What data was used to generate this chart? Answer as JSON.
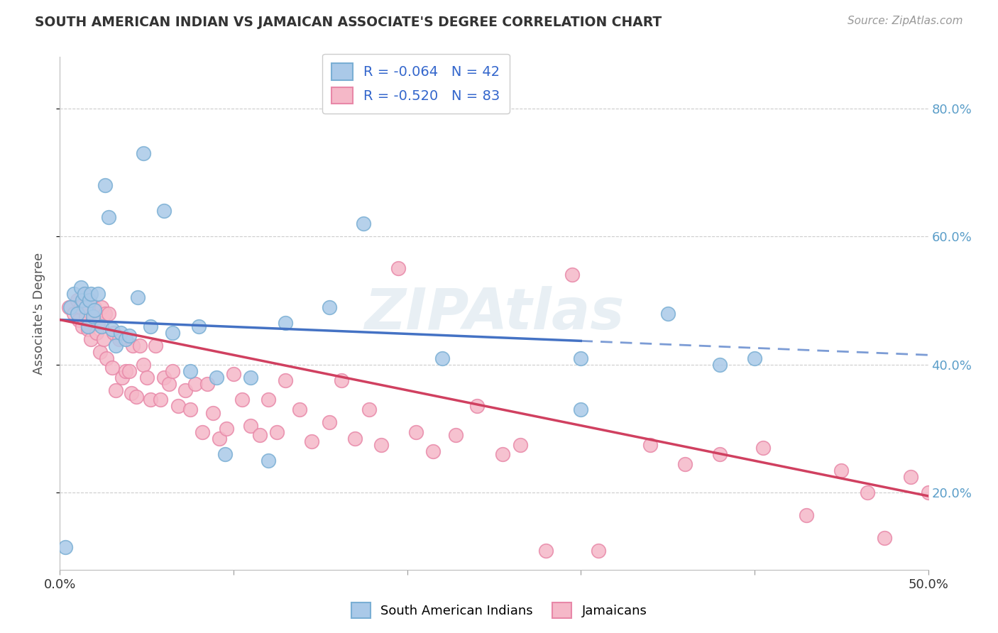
{
  "title": "SOUTH AMERICAN INDIAN VS JAMAICAN ASSOCIATE'S DEGREE CORRELATION CHART",
  "source": "Source: ZipAtlas.com",
  "ylabel": "Associate's Degree",
  "xlim": [
    0.0,
    0.5
  ],
  "ylim": [
    0.08,
    0.88
  ],
  "yticks": [
    0.2,
    0.4,
    0.6,
    0.8
  ],
  "ytick_labels": [
    "20.0%",
    "40.0%",
    "60.0%",
    "80.0%"
  ],
  "xticks": [
    0.0,
    0.1,
    0.2,
    0.3,
    0.4,
    0.5
  ],
  "xtick_labels": [
    "0.0%",
    "",
    "",
    "",
    "",
    "50.0%"
  ],
  "blue_R": "-0.064",
  "blue_N": "42",
  "pink_R": "-0.520",
  "pink_N": "83",
  "blue_color": "#aac9e8",
  "pink_color": "#f5b8c8",
  "blue_edge": "#7aafd4",
  "pink_edge": "#e888a8",
  "trend_blue": "#4472c4",
  "trend_pink": "#d04060",
  "watermark": "ZIPAtlas",
  "blue_points_x": [
    0.003,
    0.006,
    0.008,
    0.01,
    0.012,
    0.013,
    0.014,
    0.015,
    0.016,
    0.017,
    0.018,
    0.019,
    0.02,
    0.022,
    0.024,
    0.026,
    0.028,
    0.03,
    0.032,
    0.035,
    0.038,
    0.04,
    0.045,
    0.048,
    0.052,
    0.06,
    0.065,
    0.075,
    0.08,
    0.09,
    0.095,
    0.11,
    0.12,
    0.13,
    0.155,
    0.175,
    0.22,
    0.3,
    0.38,
    0.3,
    0.4,
    0.35
  ],
  "blue_points_y": [
    0.115,
    0.49,
    0.51,
    0.48,
    0.52,
    0.5,
    0.51,
    0.49,
    0.46,
    0.5,
    0.51,
    0.475,
    0.485,
    0.51,
    0.46,
    0.68,
    0.63,
    0.455,
    0.43,
    0.45,
    0.44,
    0.445,
    0.505,
    0.73,
    0.46,
    0.64,
    0.45,
    0.39,
    0.46,
    0.38,
    0.26,
    0.38,
    0.25,
    0.465,
    0.49,
    0.62,
    0.41,
    0.41,
    0.4,
    0.33,
    0.41,
    0.48
  ],
  "pink_points_x": [
    0.005,
    0.008,
    0.01,
    0.011,
    0.012,
    0.013,
    0.014,
    0.015,
    0.016,
    0.017,
    0.018,
    0.019,
    0.02,
    0.021,
    0.022,
    0.023,
    0.024,
    0.025,
    0.026,
    0.027,
    0.028,
    0.03,
    0.031,
    0.032,
    0.034,
    0.036,
    0.038,
    0.04,
    0.041,
    0.042,
    0.044,
    0.046,
    0.048,
    0.05,
    0.052,
    0.055,
    0.058,
    0.06,
    0.063,
    0.065,
    0.068,
    0.072,
    0.075,
    0.078,
    0.082,
    0.085,
    0.088,
    0.092,
    0.096,
    0.1,
    0.105,
    0.11,
    0.115,
    0.12,
    0.125,
    0.13,
    0.138,
    0.145,
    0.155,
    0.162,
    0.17,
    0.178,
    0.185,
    0.195,
    0.205,
    0.215,
    0.228,
    0.24,
    0.255,
    0.265,
    0.28,
    0.295,
    0.31,
    0.34,
    0.36,
    0.38,
    0.405,
    0.43,
    0.45,
    0.465,
    0.475,
    0.49,
    0.5
  ],
  "pink_points_y": [
    0.49,
    0.48,
    0.5,
    0.47,
    0.49,
    0.46,
    0.51,
    0.475,
    0.455,
    0.49,
    0.44,
    0.47,
    0.49,
    0.45,
    0.465,
    0.42,
    0.49,
    0.44,
    0.48,
    0.41,
    0.48,
    0.395,
    0.45,
    0.36,
    0.44,
    0.38,
    0.39,
    0.39,
    0.355,
    0.43,
    0.35,
    0.43,
    0.4,
    0.38,
    0.345,
    0.43,
    0.345,
    0.38,
    0.37,
    0.39,
    0.335,
    0.36,
    0.33,
    0.37,
    0.295,
    0.37,
    0.325,
    0.285,
    0.3,
    0.385,
    0.345,
    0.305,
    0.29,
    0.345,
    0.295,
    0.375,
    0.33,
    0.28,
    0.31,
    0.375,
    0.285,
    0.33,
    0.275,
    0.55,
    0.295,
    0.265,
    0.29,
    0.335,
    0.26,
    0.275,
    0.11,
    0.54,
    0.11,
    0.275,
    0.245,
    0.26,
    0.27,
    0.165,
    0.235,
    0.2,
    0.13,
    0.225,
    0.2
  ]
}
